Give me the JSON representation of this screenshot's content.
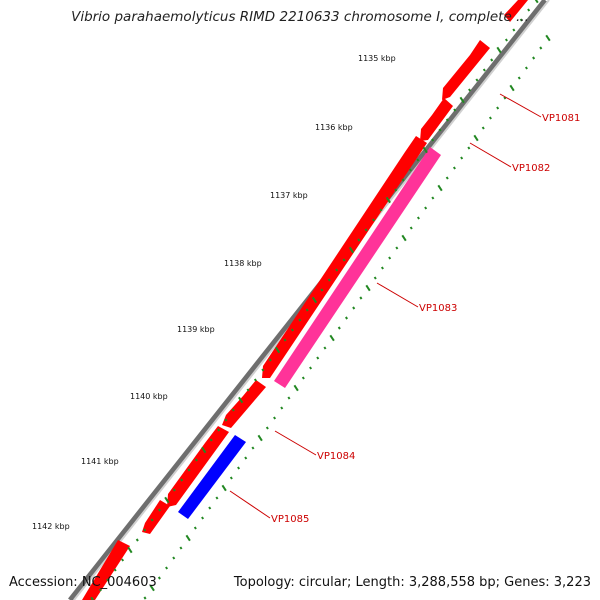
{
  "map": {
    "title": "Vibrio parahaemolyticus RIMD 2210633 chromosome I, complete ...",
    "accession": "Accession: NC_004603",
    "summary": "Topology: circular; Length: 3,288,558 bp; Genes: 3,223"
  },
  "ruler": {
    "ticks": [
      {
        "label": "1135 kbp"
      },
      {
        "label": "1136 kbp"
      },
      {
        "label": "1137 kbp"
      },
      {
        "label": "1138 kbp"
      },
      {
        "label": "1139 kbp"
      },
      {
        "label": "1140 kbp"
      },
      {
        "label": "1141 kbp"
      },
      {
        "label": "1142 kbp"
      }
    ]
  },
  "genes": [
    {
      "label": "VP1081"
    },
    {
      "label": "VP1082"
    },
    {
      "label": "VP1083"
    },
    {
      "label": "VP1084"
    },
    {
      "label": "VP1085"
    }
  ],
  "colors": {
    "forward_track": "#ff0000",
    "reverse_track_red": "#ff0000",
    "reverse_track_magenta": "#ff3399",
    "reverse_track_blue": "#0000ff",
    "backbone": "#888888",
    "ruler_dots": "#228822",
    "gene_label": "#cc0000"
  }
}
